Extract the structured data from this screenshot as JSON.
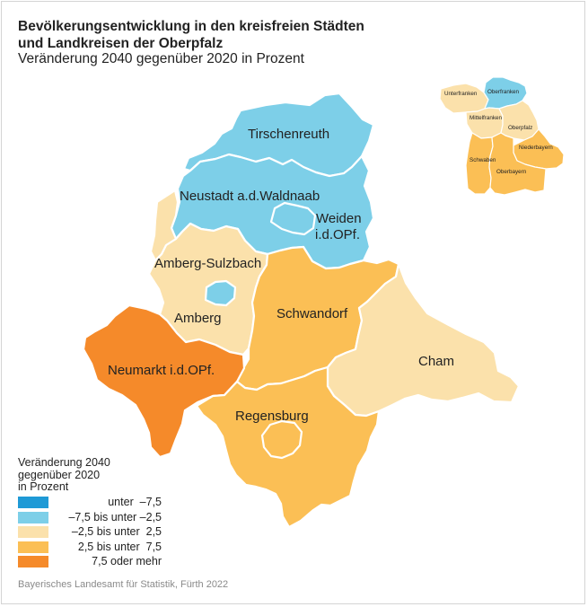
{
  "title_line1": "Bevölkerungsentwicklung in den kreisfreien Städten",
  "title_line2": "und Landkreisen der Oberpfalz",
  "subtitle": "Veränderung 2040 gegenüber 2020 in Prozent",
  "legend": {
    "title_line1": "Veränderung 2040",
    "title_line2": "gegenüber 2020",
    "title_line3": "in Prozent",
    "items": [
      {
        "label": "unter  –7,5",
        "color": "#1f9ad6"
      },
      {
        "label": "–7,5 bis unter –2,5",
        "color": "#7dcfe8"
      },
      {
        "label": "–2,5 bis unter  2,5",
        "color": "#fbe1ab"
      },
      {
        "label": "2,5 bis unter  7,5",
        "color": "#fbbf55"
      },
      {
        "label": "7,5 oder mehr",
        "color": "#f58a2a"
      }
    ]
  },
  "regions": {
    "tirschenreuth": "Tirschenreuth",
    "neustadt": "Neustadt a.d.Waldnaab",
    "weiden_1": "Weiden",
    "weiden_2": "i.d.OPf.",
    "amberg_sulzbach": "Amberg-Sulzbach",
    "amberg": "Amberg",
    "schwandorf": "Schwandorf",
    "neumarkt": "Neumarkt i.d.OPf.",
    "cham": "Cham",
    "regensburg": "Regensburg"
  },
  "inset": {
    "unterfranken": "Unterfranken",
    "oberfranken": "Oberfranken",
    "mittelfranken": "Mittelfranken",
    "oberpfalz": "Oberpfalz",
    "niederbayern": "Niederbayern",
    "schwaben": "Schwaben",
    "oberbayern": "Oberbayern"
  },
  "source": "Bayerisches Landesamt für Statistik, Fürth 2022"
}
